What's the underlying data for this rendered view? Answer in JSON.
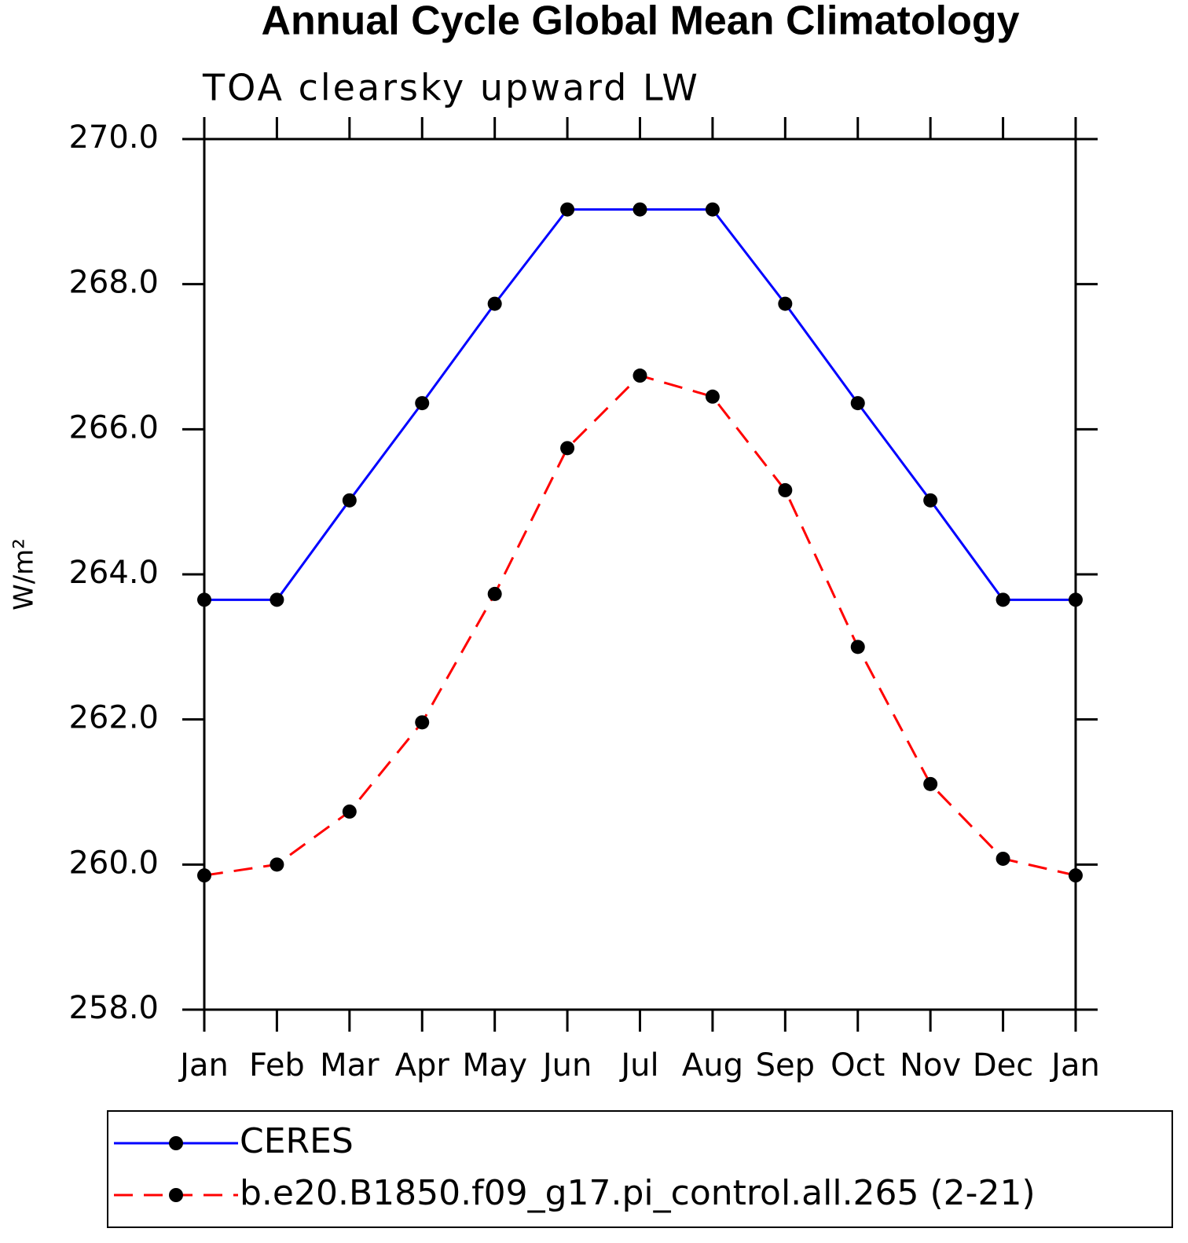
{
  "chart_data": {
    "type": "line",
    "title": "Annual Cycle Global Mean Climatology",
    "subtitle": "TOA clearsky upward LW",
    "y_label": "W/m²",
    "categories": [
      "Jan",
      "Feb",
      "Mar",
      "Apr",
      "May",
      "Jun",
      "Jul",
      "Aug",
      "Sep",
      "Oct",
      "Nov",
      "Dec",
      "Jan"
    ],
    "series": [
      {
        "name": "CERES",
        "color": "#0000ff",
        "dashed": false,
        "values": [
          263.65,
          263.65,
          265.02,
          266.36,
          267.73,
          269.03,
          269.03,
          269.03,
          267.73,
          266.36,
          265.02,
          263.65,
          263.65
        ]
      },
      {
        "name": "b.e20.B1850.f09_g17.pi_control.all.265 (2-21)",
        "color": "#ff0000",
        "dashed": true,
        "values": [
          259.85,
          260.0,
          260.73,
          261.96,
          263.73,
          265.74,
          266.74,
          266.45,
          265.16,
          263.0,
          261.11,
          260.08,
          259.85
        ]
      }
    ],
    "ylim": [
      258,
      270
    ],
    "yticks": [
      {
        "value": 258,
        "label": "258.0"
      },
      {
        "value": 260,
        "label": "260.0"
      },
      {
        "value": 262,
        "label": "262.0"
      },
      {
        "value": 264,
        "label": "264.0"
      },
      {
        "value": 266,
        "label": "266.0"
      },
      {
        "value": 268,
        "label": "268.0"
      },
      {
        "value": 270,
        "label": "270.0"
      }
    ],
    "marker_color": "#000000"
  }
}
